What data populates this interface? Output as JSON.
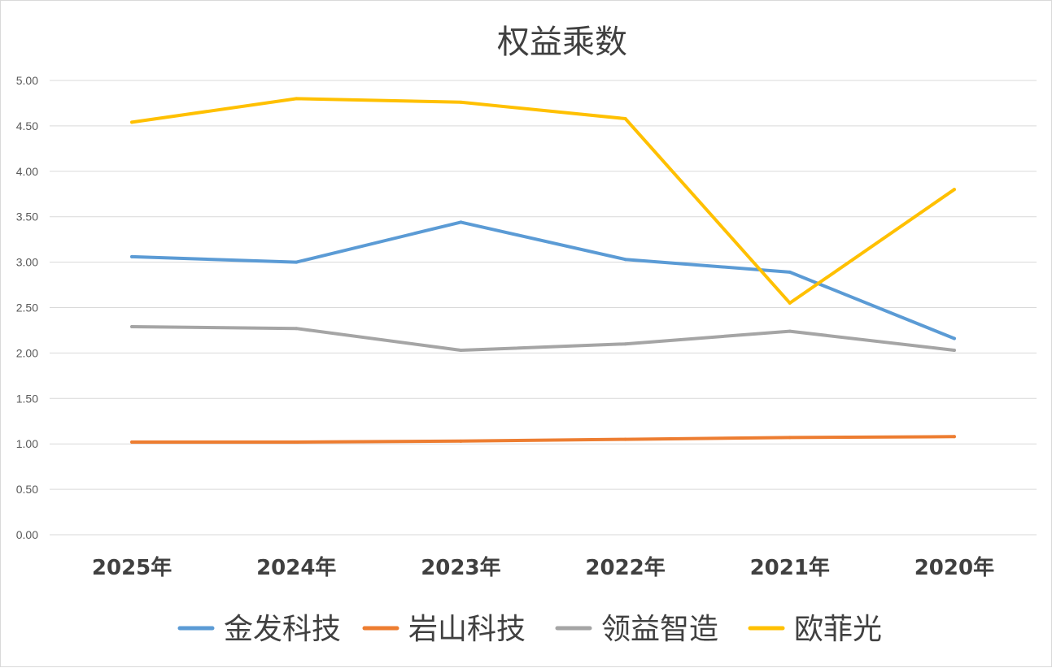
{
  "chart_data": {
    "type": "line",
    "title": "权益乘数",
    "categories": [
      "2025年",
      "2024年",
      "2023年",
      "2022年",
      "2021年",
      "2020年"
    ],
    "ylim": [
      0,
      5
    ],
    "yticks": [
      "0.00",
      "0.50",
      "1.00",
      "1.50",
      "2.00",
      "2.50",
      "3.00",
      "3.50",
      "4.00",
      "4.50",
      "5.00"
    ],
    "grid": true,
    "legend_position": "bottom",
    "series": [
      {
        "name": "金发科技",
        "color": "#5B9BD5",
        "values": [
          3.06,
          3.0,
          3.44,
          3.03,
          2.89,
          2.16
        ]
      },
      {
        "name": "岩山科技",
        "color": "#ED7D31",
        "values": [
          1.02,
          1.02,
          1.03,
          1.05,
          1.07,
          1.08
        ]
      },
      {
        "name": "领益智造",
        "color": "#A5A5A5",
        "values": [
          2.29,
          2.27,
          2.03,
          2.1,
          2.24,
          2.03
        ]
      },
      {
        "name": "欧菲光",
        "color": "#FFC000",
        "values": [
          4.54,
          4.8,
          4.76,
          4.58,
          2.55,
          3.8
        ]
      }
    ]
  }
}
